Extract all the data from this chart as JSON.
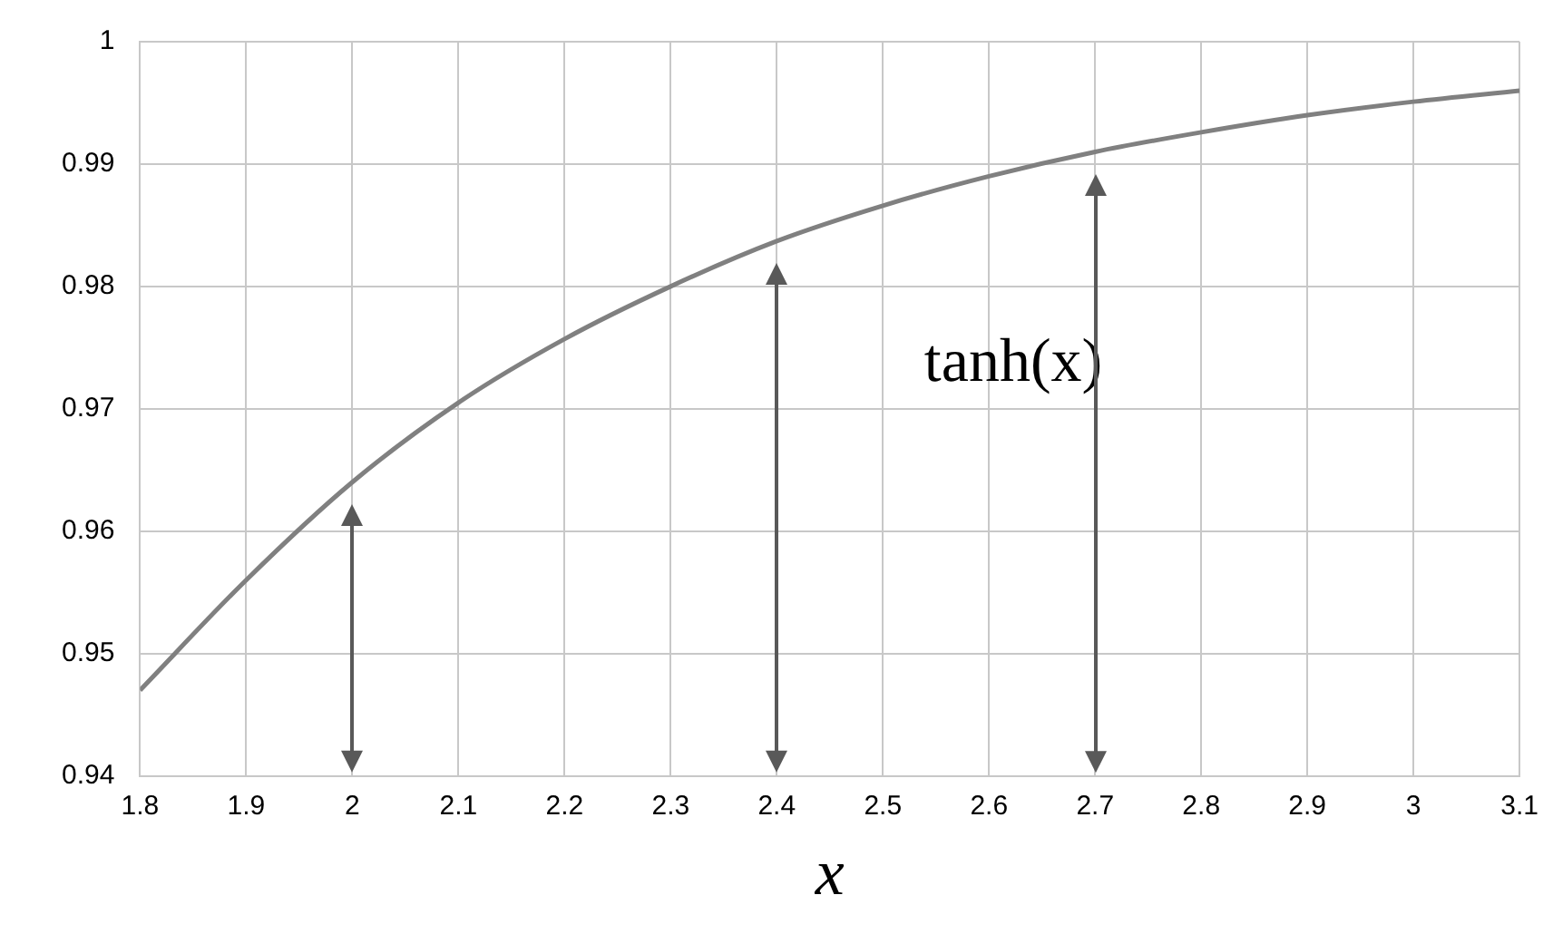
{
  "chart_data": {
    "type": "line",
    "xlabel": "x",
    "x": [
      1.8,
      1.9,
      2.0,
      2.1,
      2.2,
      2.3,
      2.4,
      2.5,
      2.6,
      2.7,
      2.8,
      2.9,
      3.0,
      3.1
    ],
    "series": [
      {
        "color": "#808080",
        "values": [
          0.947,
          0.956,
          0.964,
          0.9705,
          0.9757,
          0.98,
          0.9837,
          0.9866,
          0.989,
          0.991,
          0.9926,
          0.994,
          0.9951,
          0.996
        ]
      }
    ],
    "xlim": [
      1.8,
      3.1
    ],
    "xticks": [
      1.8,
      1.9,
      2,
      2.1,
      2.2,
      2.3,
      2.4,
      2.5,
      2.6,
      2.7,
      2.8,
      2.9,
      3,
      3.1
    ],
    "ylim": [
      0.94,
      1
    ],
    "yticks": [
      0.94,
      0.95,
      0.96,
      0.97,
      0.98,
      0.99,
      1
    ],
    "ref_lines": [
      {
        "axis": "x",
        "value": 2,
        "color": "#595959"
      },
      {
        "axis": "x",
        "value": 2.4,
        "color": "#595959"
      },
      {
        "axis": "x",
        "value": 2.7,
        "color": "#595959"
      }
    ],
    "annotations": [
      "tanh(x)"
    ],
    "grid": true,
    "legend": false,
    "marker": "none",
    "line_style": "solid"
  }
}
